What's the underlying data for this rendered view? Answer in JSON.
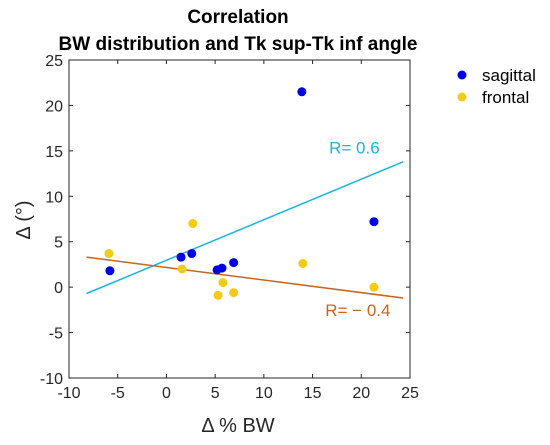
{
  "chart_data": {
    "type": "scatter",
    "title": "Correlation",
    "subtitle": "BW distribution and Tk sup-Tk inf angle",
    "xlabel": "Δ % BW",
    "ylabel": "Δ (°)",
    "xlim": [
      -10,
      25
    ],
    "ylim": [
      -10,
      25
    ],
    "xticks": [
      -10,
      -5,
      0,
      5,
      10,
      15,
      20,
      25
    ],
    "yticks": [
      -10,
      -5,
      0,
      5,
      10,
      15,
      20,
      25
    ],
    "xtick_labels": [
      "-10",
      "-5",
      "0",
      "5",
      "10",
      "15",
      "20",
      "25"
    ],
    "ytick_labels": [
      "-10",
      "-5",
      "0",
      "5",
      "10",
      "15",
      "20",
      "25"
    ],
    "grid": false,
    "legend_position": "top-right-outside",
    "series": [
      {
        "name": "sagittal",
        "color": "#0000e6",
        "points": [
          [
            -5.8,
            1.8
          ],
          [
            1.5,
            3.3
          ],
          [
            2.6,
            3.7
          ],
          [
            5.2,
            1.9
          ],
          [
            5.7,
            2.1
          ],
          [
            6.9,
            2.7
          ],
          [
            13.9,
            21.5
          ],
          [
            21.3,
            7.2
          ]
        ]
      },
      {
        "name": "frontal",
        "color": "#f5cb16",
        "points": [
          [
            -5.9,
            3.7
          ],
          [
            1.6,
            2.0
          ],
          [
            2.7,
            7.0
          ],
          [
            5.3,
            -0.9
          ],
          [
            5.8,
            0.5
          ],
          [
            6.9,
            -0.6
          ],
          [
            14.0,
            2.6
          ],
          [
            21.3,
            0.0
          ]
        ]
      }
    ],
    "fit_lines": [
      {
        "series": "sagittal",
        "color": "#18b4e6",
        "x": [
          -8.2,
          24.3
        ],
        "y": [
          -0.7,
          13.8
        ],
        "label": "R= 0.6",
        "label_at": [
          16.7,
          14.7
        ]
      },
      {
        "series": "frontal",
        "color": "#c8641e",
        "x": [
          -8.2,
          24.3
        ],
        "y": [
          3.3,
          -1.2
        ],
        "label": "R= − 0.4",
        "label_at": [
          16.3,
          -3.2
        ]
      }
    ]
  }
}
